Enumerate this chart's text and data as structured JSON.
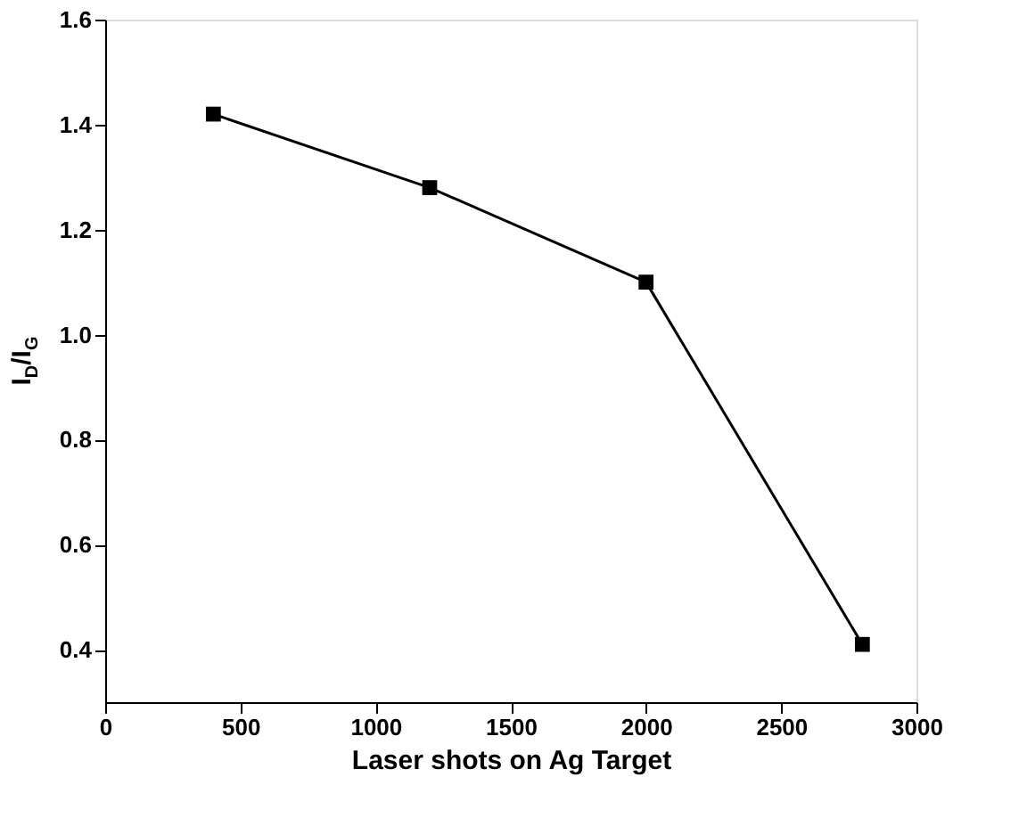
{
  "chart_data": {
    "type": "line",
    "xlabel": "Laser shots on Ag Target",
    "ylabel": "I$_{D}$/I$_{G}$",
    "x": [
      400,
      1200,
      2000,
      2800
    ],
    "series": [
      {
        "color": "#000000",
        "values": [
          1.42,
          1.28,
          1.1,
          0.41
        ]
      }
    ],
    "xlim": [
      0,
      3000
    ],
    "xticks": [
      0,
      500,
      1000,
      1500,
      2000,
      2500,
      3000
    ],
    "ylim": [
      0.3,
      1.6
    ],
    "yticks": [
      0.4,
      0.6,
      0.8,
      {
        "value": 1.0,
        "label": "1.0"
      },
      1.2,
      1.4,
      1.6
    ],
    "marker": "square",
    "line_style": "solid",
    "grid": false
  }
}
